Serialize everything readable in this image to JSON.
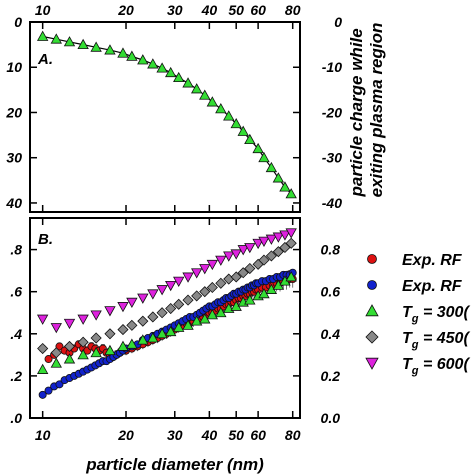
{
  "chart_data": [
    {
      "panel": "A.",
      "type": "line",
      "x_scale": "log",
      "xlim": [
        9,
        85
      ],
      "ylim": [
        -42,
        0
      ],
      "top_tick_labels": [
        "10",
        "20",
        "30",
        "40",
        "50",
        "60",
        "80"
      ],
      "left_tick_labels": [
        "0",
        "10",
        "20",
        "30",
        "40"
      ],
      "right_tick_labels": [
        "0",
        "-10",
        "-20",
        "-30",
        "-40"
      ],
      "ylabel_right_lines": [
        "particle charge while",
        "exiting plasma region"
      ],
      "marker_color": "#33dd33",
      "series": [
        {
          "x": [
            10,
            11.2,
            12.5,
            14,
            15.6,
            17.5,
            19.5,
            21,
            23,
            25,
            27,
            29,
            31,
            33.5,
            36,
            38.5,
            41,
            44,
            47,
            50,
            53,
            56,
            60,
            63,
            67,
            71,
            75,
            79
          ],
          "y": [
            -3.2,
            -3.8,
            -4.4,
            -5,
            -5.6,
            -6.2,
            -6.9,
            -7.6,
            -8.4,
            -9.3,
            -10.2,
            -11.2,
            -12.3,
            -13.5,
            -14.8,
            -16.2,
            -17.7,
            -19.2,
            -20.8,
            -22.5,
            -24.2,
            -26,
            -28,
            -30,
            -32.2,
            -34.5,
            -36.5,
            -38
          ]
        }
      ]
    },
    {
      "panel": "B.",
      "type": "scatter",
      "x_scale": "log",
      "xlim": [
        9,
        85
      ],
      "ylim": [
        0,
        0.95
      ],
      "bottom_tick_labels": [
        "10",
        "20",
        "30",
        "40",
        "50",
        "60",
        "80"
      ],
      "left_tick_labels": [
        ".0",
        ".2",
        ".4",
        ".6",
        ".8"
      ],
      "right_tick_labels": [
        "0.0",
        "0.2",
        "0.4",
        "0.6",
        "0.8"
      ],
      "xlabel": "particle diameter (nm)",
      "legend": [
        {
          "text": "Exp. RF",
          "sub": "",
          "marker": "circle",
          "color": "#dd1111"
        },
        {
          "text": "Exp. RF",
          "sub": "",
          "marker": "circle",
          "color": "#1122cc"
        },
        {
          "text": "T",
          "sub": "g",
          "tail": " = 300(",
          "marker": "triangle-up",
          "color": "#33dd33"
        },
        {
          "text": "T",
          "sub": "g",
          "tail": " = 450(",
          "marker": "diamond",
          "color": "#888888"
        },
        {
          "text": "T",
          "sub": "g",
          "tail": " = 600(",
          "marker": "triangle-down",
          "color": "#dd22dd"
        }
      ],
      "series": [
        {
          "marker": "circle",
          "color": "#dd1111",
          "error_bars": true,
          "x": [
            10,
            10.5,
            11,
            11.5,
            12,
            12.5,
            13,
            13.5,
            14,
            14.5,
            15,
            15.5,
            16,
            16.5,
            17,
            17.5,
            18,
            18.5,
            19,
            19.5,
            20,
            21,
            22,
            23,
            24,
            25,
            26,
            27,
            28,
            29,
            30,
            31,
            32,
            33,
            34,
            35,
            36,
            37,
            38,
            39,
            40,
            41,
            42,
            43,
            44,
            45,
            46,
            47,
            48,
            49,
            50,
            51,
            52,
            53,
            54,
            55,
            56,
            57,
            58,
            59,
            60,
            62,
            64,
            66,
            68,
            70,
            72,
            74,
            76,
            78,
            80
          ],
          "y": [
            0.33,
            0.28,
            0.3,
            0.34,
            0.32,
            0.31,
            0.33,
            0.35,
            0.33,
            0.32,
            0.34,
            0.33,
            0.32,
            0.33,
            0.31,
            0.3,
            0.29,
            0.3,
            0.31,
            0.32,
            0.32,
            0.33,
            0.34,
            0.35,
            0.36,
            0.37,
            0.38,
            0.39,
            0.4,
            0.41,
            0.42,
            0.43,
            0.44,
            0.45,
            0.45,
            0.46,
            0.47,
            0.47,
            0.48,
            0.49,
            0.5,
            0.5,
            0.51,
            0.52,
            0.52,
            0.53,
            0.54,
            0.54,
            0.55,
            0.55,
            0.56,
            0.57,
            0.57,
            0.58,
            0.58,
            0.59,
            0.59,
            0.6,
            0.6,
            0.61,
            0.61,
            0.62,
            0.62,
            0.63,
            0.63,
            0.64,
            0.64,
            0.65,
            0.65,
            0.66,
            0.66
          ]
        },
        {
          "marker": "circle",
          "color": "#1122cc",
          "error_bars": false,
          "x": [
            10,
            10.5,
            11,
            11.5,
            12,
            12.5,
            13,
            13.5,
            14,
            14.5,
            15,
            15.5,
            16,
            16.5,
            17,
            17.5,
            18,
            18.5,
            19,
            19.5,
            20,
            21,
            22,
            23,
            24,
            25,
            26,
            27,
            28,
            29,
            30,
            31,
            32,
            33,
            34,
            35,
            36,
            37,
            38,
            39,
            40,
            41,
            42,
            43,
            44,
            45,
            46,
            47,
            48,
            49,
            50,
            51,
            52,
            53,
            54,
            55,
            56,
            57,
            58,
            59,
            60,
            62,
            64,
            66,
            68,
            70,
            72,
            74,
            76,
            78,
            80
          ],
          "y": [
            0.11,
            0.13,
            0.15,
            0.16,
            0.18,
            0.19,
            0.2,
            0.21,
            0.22,
            0.23,
            0.24,
            0.25,
            0.26,
            0.27,
            0.27,
            0.28,
            0.29,
            0.3,
            0.31,
            0.32,
            0.33,
            0.34,
            0.35,
            0.37,
            0.38,
            0.39,
            0.4,
            0.41,
            0.42,
            0.43,
            0.44,
            0.45,
            0.46,
            0.47,
            0.48,
            0.48,
            0.49,
            0.5,
            0.51,
            0.52,
            0.53,
            0.53,
            0.54,
            0.55,
            0.55,
            0.56,
            0.57,
            0.57,
            0.58,
            0.59,
            0.59,
            0.6,
            0.6,
            0.61,
            0.61,
            0.62,
            0.62,
            0.63,
            0.63,
            0.64,
            0.64,
            0.65,
            0.65,
            0.66,
            0.66,
            0.67,
            0.67,
            0.68,
            0.68,
            0.68,
            0.69
          ]
        },
        {
          "marker": "triangle-up",
          "color": "#33dd33",
          "error_bars": false,
          "x": [
            10,
            11.2,
            12.5,
            14,
            15.6,
            17.5,
            19.5,
            21,
            23,
            25,
            27,
            29,
            31,
            33.5,
            36,
            38.5,
            41,
            44,
            47,
            50,
            53,
            56,
            60,
            63,
            67,
            71,
            75,
            79
          ],
          "y": [
            0.23,
            0.26,
            0.28,
            0.3,
            0.31,
            0.32,
            0.34,
            0.35,
            0.37,
            0.38,
            0.4,
            0.41,
            0.43,
            0.44,
            0.46,
            0.47,
            0.49,
            0.5,
            0.52,
            0.53,
            0.55,
            0.56,
            0.58,
            0.59,
            0.61,
            0.63,
            0.65,
            0.67
          ]
        },
        {
          "marker": "diamond",
          "color": "#888888",
          "error_bars": false,
          "x": [
            10,
            11.2,
            12.5,
            14,
            15.6,
            17.5,
            19.5,
            21,
            23,
            25,
            27,
            29,
            31,
            33.5,
            36,
            38.5,
            41,
            44,
            47,
            50,
            53,
            56,
            60,
            63,
            67,
            71,
            75,
            79
          ],
          "y": [
            0.33,
            0.31,
            0.34,
            0.36,
            0.38,
            0.4,
            0.42,
            0.44,
            0.46,
            0.48,
            0.5,
            0.52,
            0.54,
            0.56,
            0.58,
            0.6,
            0.62,
            0.64,
            0.66,
            0.67,
            0.69,
            0.71,
            0.73,
            0.75,
            0.77,
            0.79,
            0.81,
            0.83
          ]
        },
        {
          "marker": "triangle-down",
          "color": "#dd22dd",
          "error_bars": false,
          "x": [
            10,
            11.2,
            12.5,
            14,
            15.6,
            17.5,
            19.5,
            21,
            23,
            25,
            27,
            29,
            31,
            33.5,
            36,
            38.5,
            41,
            44,
            47,
            50,
            53,
            56,
            60,
            63,
            67,
            71,
            75,
            79
          ],
          "y": [
            0.47,
            0.43,
            0.45,
            0.47,
            0.49,
            0.51,
            0.53,
            0.55,
            0.57,
            0.59,
            0.61,
            0.63,
            0.65,
            0.67,
            0.69,
            0.71,
            0.73,
            0.75,
            0.77,
            0.78,
            0.8,
            0.81,
            0.83,
            0.84,
            0.85,
            0.86,
            0.87,
            0.88
          ]
        }
      ]
    }
  ]
}
